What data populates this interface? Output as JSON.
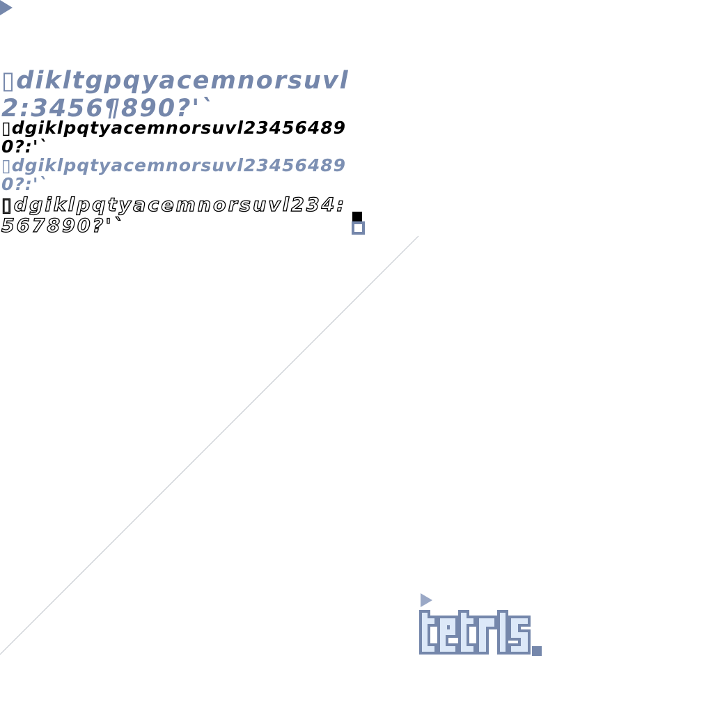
{
  "specimen": {
    "rows": [
      "▯dikltgpqyacemnorsuvl2:3456¶890?'`",
      "▯dgiklpqtyacemnorsuvl234564890?:'`",
      "▯dgiklpqtyacemnorsuvl234564890?:'`",
      "▯dgiklpqtyacemnorsuvl234:567890?'`"
    ],
    "row_colors": [
      "#7587ab",
      "#000000",
      "#7d90b3",
      "#ffffff"
    ]
  },
  "logo": {
    "word": "tetris",
    "fill_color": "#dce8f8",
    "stroke_color": "#7587ab"
  },
  "colors": {
    "accent": "#7587ab",
    "line": "#c8ccd2",
    "background": "#ffffff"
  },
  "icons": {
    "corner_marker": "play-triangle-icon",
    "logo_marker": "play-triangle-icon"
  }
}
